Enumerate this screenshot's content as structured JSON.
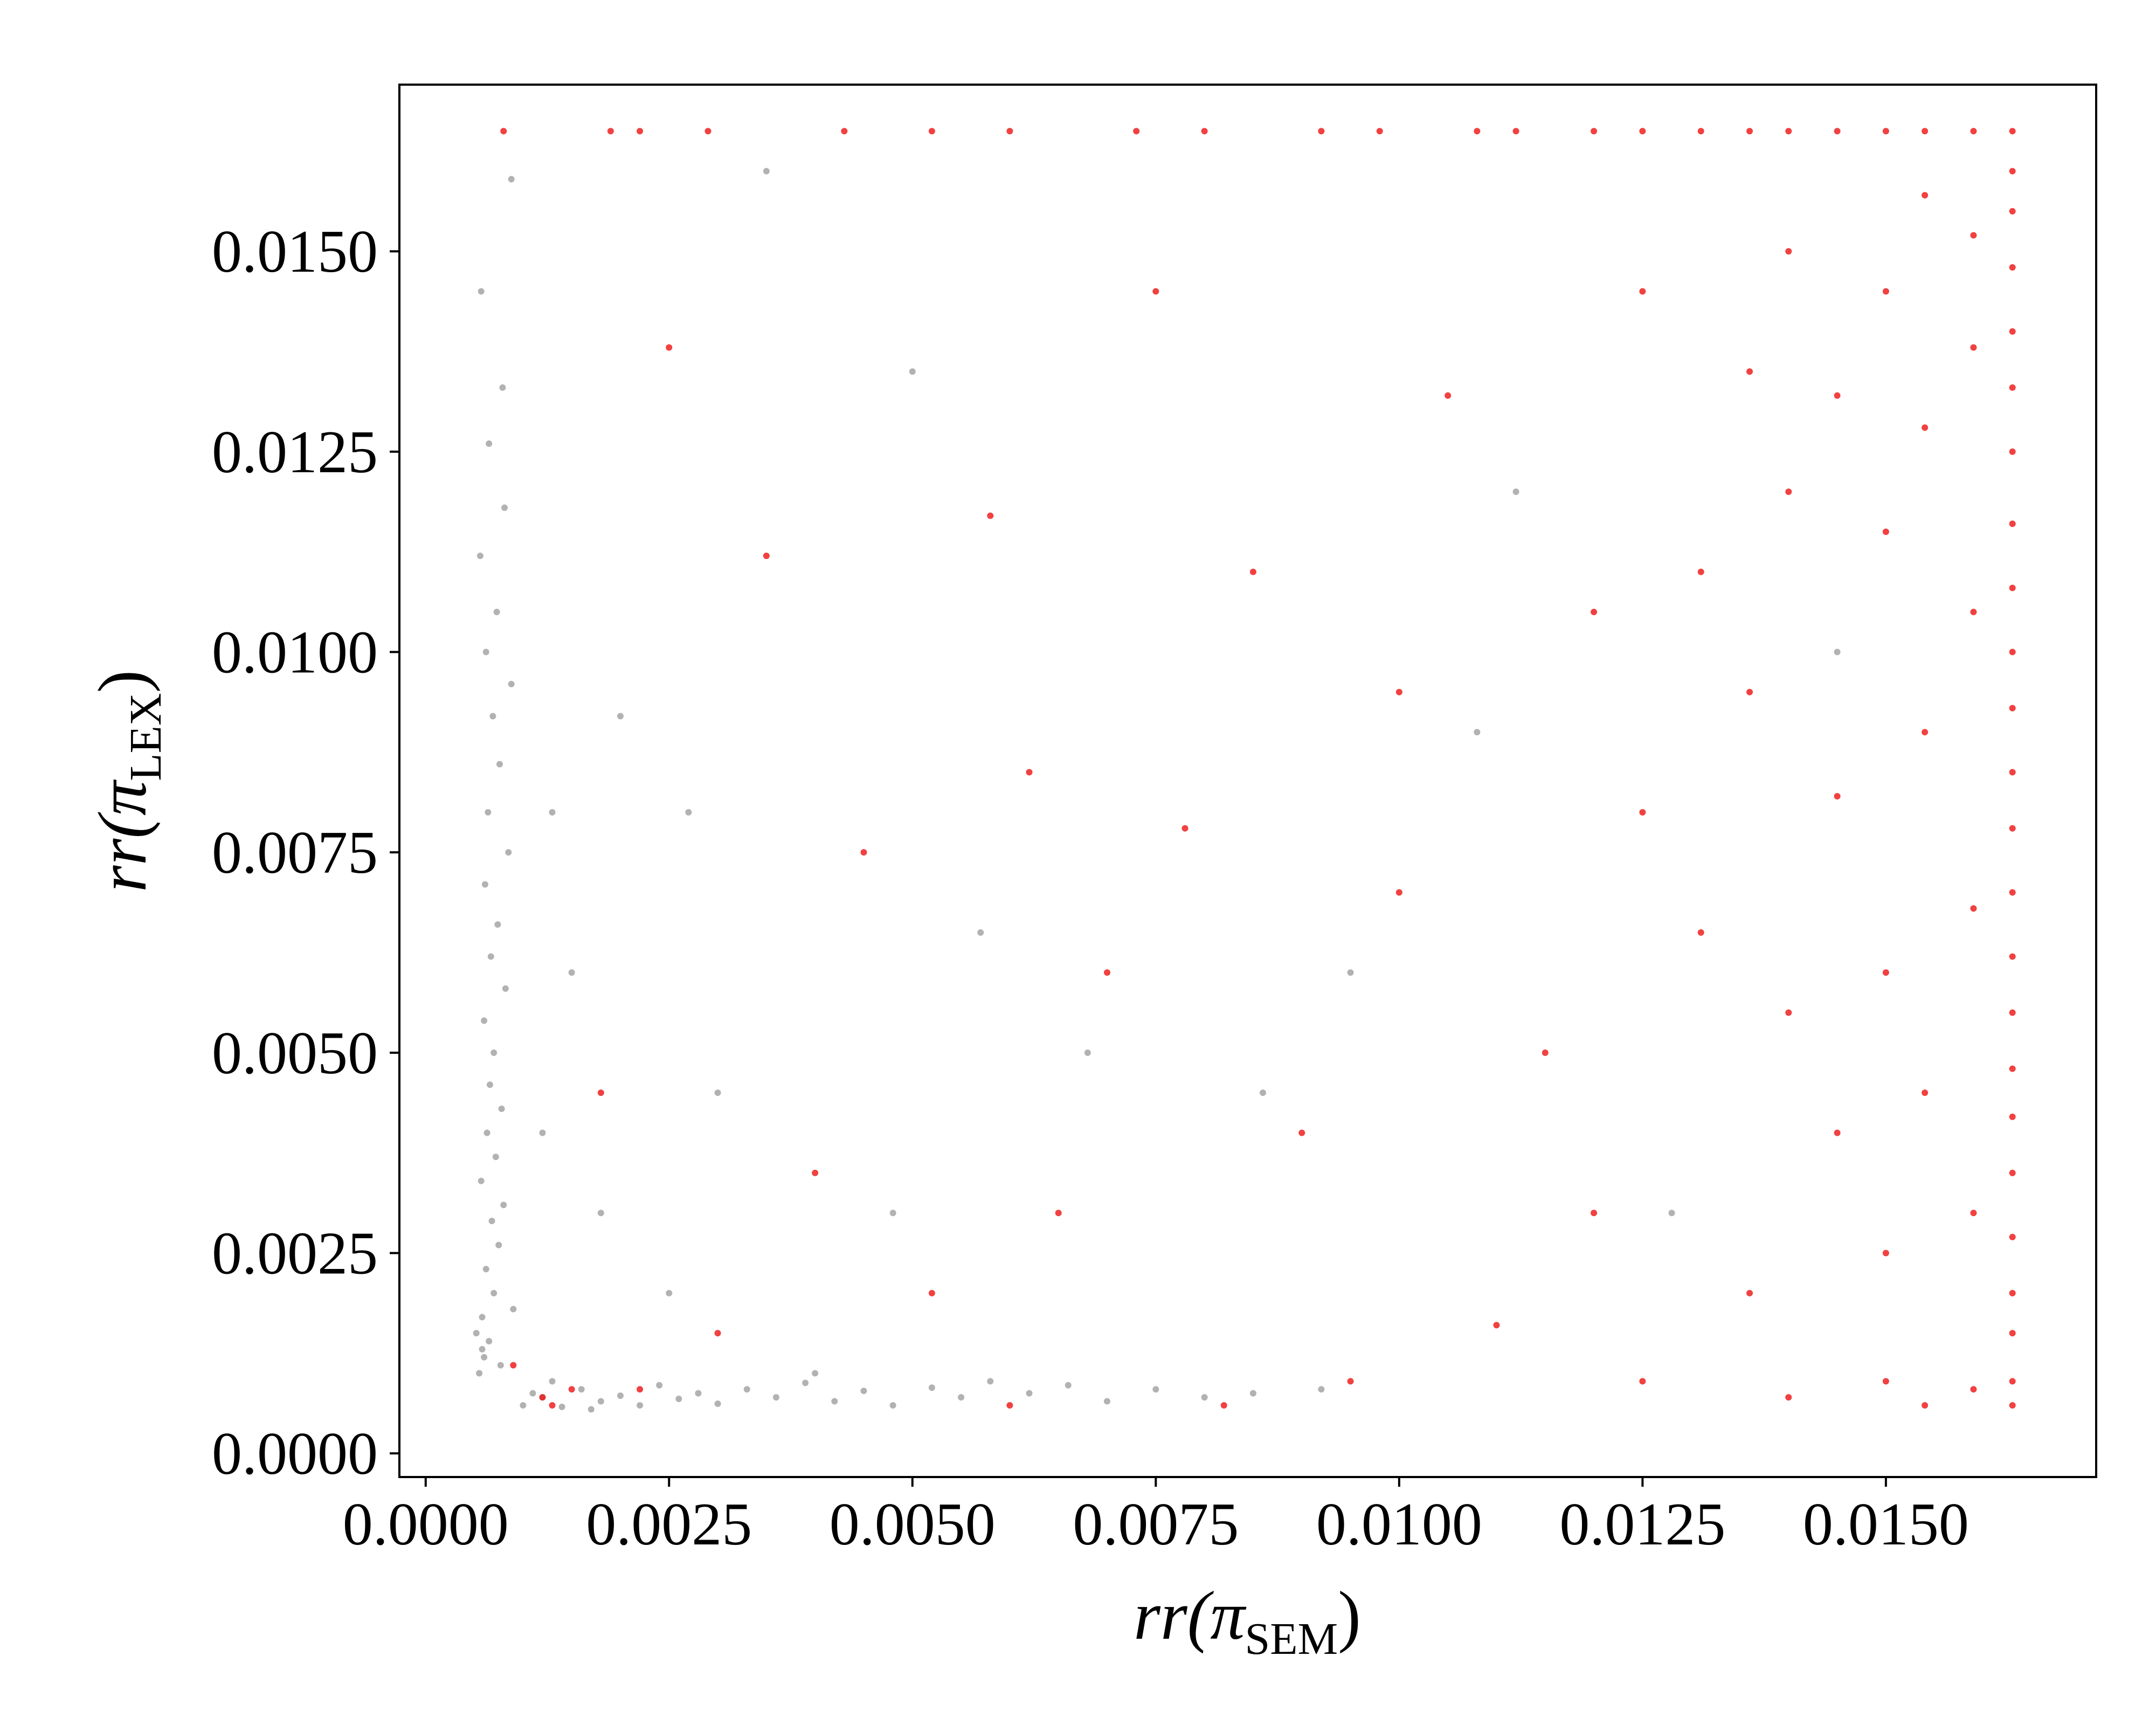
{
  "chart_data": {
    "type": "scatter",
    "x_label": [
      "rr(π",
      "SEM",
      ")"
    ],
    "y_label": [
      "rr(π",
      "LEX",
      ")"
    ],
    "xlim": [
      -0.00027,
      0.01716
    ],
    "ylim": [
      -0.000295,
      0.01708
    ],
    "xticks": [
      {
        "value": 0,
        "label": "0.0000"
      },
      {
        "value": 0.0025,
        "label": "0.0025"
      },
      {
        "value": 0.005,
        "label": "0.0050"
      },
      {
        "value": 0.0075,
        "label": "0.0075"
      },
      {
        "value": 0.01,
        "label": "0.0100"
      },
      {
        "value": 0.0125,
        "label": "0.0125"
      },
      {
        "value": 0.015,
        "label": "0.0150"
      }
    ],
    "yticks": [
      {
        "value": 0,
        "label": "0.0000"
      },
      {
        "value": 0.0025,
        "label": "0.0025"
      },
      {
        "value": 0.005,
        "label": "0.0050"
      },
      {
        "value": 0.0075,
        "label": "0.0075"
      },
      {
        "value": 0.01,
        "label": "0.0100"
      },
      {
        "value": 0.0125,
        "label": "0.0125"
      },
      {
        "value": 0.015,
        "label": "0.0150"
      }
    ],
    "grid": false,
    "series": [
      {
        "color": "#000000",
        "alpha": 0.3,
        "x": [
          0.00055,
          0.0006,
          0.00065,
          0.00058,
          0.0007,
          0.00062,
          0.00075,
          0.00068,
          0.0008,
          0.00057,
          0.00072,
          0.00063,
          0.00078,
          0.00066,
          0.0007,
          0.0006,
          0.00082,
          0.00067,
          0.00074,
          0.00061,
          0.00085,
          0.00064,
          0.00076,
          0.00069,
          0.00088,
          0.00062,
          0.00073,
          0.00056,
          0.00081,
          0.00065,
          0.00079,
          0.00057,
          0.00088,
          0.00058,
          0.00077,
          0.0009,
          0.00052,
          0.001,
          0.0012,
          0.0014,
          0.0016,
          0.0018,
          0.002,
          0.0022,
          0.0024,
          0.0026,
          0.0028,
          0.003,
          0.0033,
          0.0036,
          0.0039,
          0.0042,
          0.0045,
          0.0048,
          0.0052,
          0.0055,
          0.0058,
          0.0062,
          0.0066,
          0.007,
          0.0075,
          0.008,
          0.0085,
          0.0092,
          0.0013,
          0.0011,
          0.0017,
          0.0012,
          0.0018,
          0.0025,
          0.003,
          0.0015,
          0.004,
          0.002,
          0.0057,
          0.0086,
          0.005,
          0.0035,
          0.0027,
          0.0068,
          0.0095,
          0.0112,
          0.0128,
          0.0145,
          0.0108,
          0.0048,
          0.0013
        ],
        "y": [
          0.001,
          0.0012,
          0.0014,
          0.0017,
          0.002,
          0.0023,
          0.0026,
          0.0029,
          0.0031,
          0.0034,
          0.0037,
          0.004,
          0.0043,
          0.0046,
          0.005,
          0.0054,
          0.0058,
          0.0062,
          0.0066,
          0.0071,
          0.0075,
          0.008,
          0.0086,
          0.0092,
          0.0096,
          0.01,
          0.0105,
          0.0112,
          0.0118,
          0.0126,
          0.0133,
          0.0145,
          0.0159,
          0.0013,
          0.0011,
          0.0018,
          0.0015,
          0.0006,
          0.0007,
          0.00058,
          0.0008,
          0.00065,
          0.00072,
          0.0006,
          0.00085,
          0.00068,
          0.00075,
          0.00062,
          0.0008,
          0.0007,
          0.00088,
          0.00065,
          0.00078,
          0.0006,
          0.00082,
          0.0007,
          0.0009,
          0.00075,
          0.00085,
          0.00065,
          0.0008,
          0.0007,
          0.00075,
          0.0008,
          0.0009,
          0.00075,
          0.00055,
          0.004,
          0.003,
          0.002,
          0.0045,
          0.006,
          0.001,
          0.0092,
          0.0065,
          0.0045,
          0.0135,
          0.016,
          0.008,
          0.005,
          0.006,
          0.012,
          0.003,
          0.01,
          0.009,
          0.003,
          0.008
        ]
      },
      {
        "color": "#ee1111",
        "alpha": 0.8,
        "x": [
          0.0008,
          0.0019,
          0.0022,
          0.0029,
          0.0043,
          0.0052,
          0.006,
          0.0073,
          0.008,
          0.0092,
          0.0098,
          0.0108,
          0.0112,
          0.012,
          0.0125,
          0.0131,
          0.0136,
          0.014,
          0.0145,
          0.015,
          0.0154,
          0.0159,
          0.0163,
          0.0163,
          0.0163,
          0.0163,
          0.0163,
          0.0163,
          0.0163,
          0.0163,
          0.0163,
          0.0163,
          0.0163,
          0.0163,
          0.0163,
          0.0163,
          0.0163,
          0.0163,
          0.0163,
          0.0163,
          0.0163,
          0.0163,
          0.0163,
          0.0163,
          0.0163,
          0.0163,
          0.0159,
          0.0159,
          0.0159,
          0.0159,
          0.0159,
          0.0159,
          0.0154,
          0.0154,
          0.0154,
          0.0154,
          0.0154,
          0.015,
          0.015,
          0.015,
          0.015,
          0.015,
          0.0145,
          0.0145,
          0.0145,
          0.014,
          0.014,
          0.014,
          0.014,
          0.0136,
          0.0136,
          0.0136,
          0.0131,
          0.0131,
          0.0125,
          0.0125,
          0.0125,
          0.012,
          0.012,
          0.0012,
          0.0015,
          0.0013,
          0.0009,
          0.0022,
          0.003,
          0.004,
          0.0052,
          0.0062,
          0.007,
          0.0078,
          0.0085,
          0.009,
          0.01,
          0.011,
          0.0115,
          0.0035,
          0.0045,
          0.0058,
          0.0065,
          0.0095,
          0.0105,
          0.0018,
          0.0025,
          0.0082,
          0.006,
          0.01,
          0.0075
        ],
        "y": [
          0.0165,
          0.0165,
          0.0165,
          0.0165,
          0.0165,
          0.0165,
          0.0165,
          0.0165,
          0.0165,
          0.0165,
          0.0165,
          0.0165,
          0.0165,
          0.0165,
          0.0165,
          0.0165,
          0.0165,
          0.0165,
          0.0165,
          0.0165,
          0.0165,
          0.0165,
          0.0165,
          0.0006,
          0.0009,
          0.0015,
          0.002,
          0.0027,
          0.0035,
          0.0042,
          0.0048,
          0.0055,
          0.0062,
          0.007,
          0.0078,
          0.0085,
          0.0093,
          0.01,
          0.0108,
          0.0116,
          0.0125,
          0.0133,
          0.014,
          0.0148,
          0.0155,
          0.016,
          0.0008,
          0.003,
          0.0068,
          0.0105,
          0.0138,
          0.0152,
          0.0006,
          0.0045,
          0.009,
          0.0128,
          0.0157,
          0.0009,
          0.0025,
          0.006,
          0.0115,
          0.0145,
          0.004,
          0.0082,
          0.0132,
          0.0007,
          0.0055,
          0.012,
          0.015,
          0.002,
          0.0095,
          0.0135,
          0.0065,
          0.011,
          0.0009,
          0.008,
          0.0145,
          0.003,
          0.0105,
          0.0007,
          0.0008,
          0.0006,
          0.0011,
          0.0008,
          0.0015,
          0.0035,
          0.002,
          0.0085,
          0.006,
          0.0078,
          0.011,
          0.004,
          0.007,
          0.0016,
          0.005,
          0.0112,
          0.0075,
          0.0117,
          0.003,
          0.0009,
          0.0132,
          0.0045,
          0.0138,
          0.0006,
          0.0006,
          0.0095,
          0.0145
        ]
      }
    ]
  }
}
